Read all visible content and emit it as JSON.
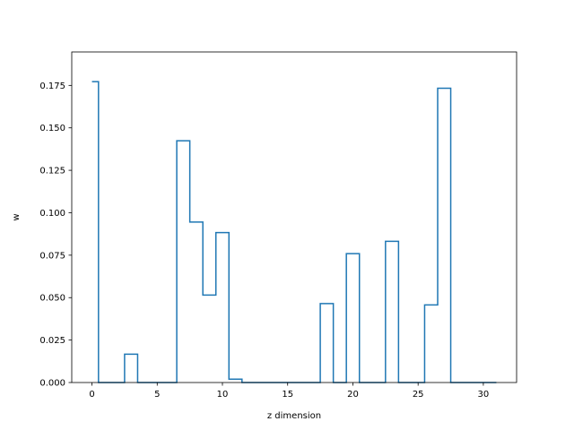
{
  "chart_data": {
    "type": "line",
    "drawstyle": "steps-mid",
    "title": "",
    "xlabel": "z dimension",
    "ylabel": "w",
    "xlim": [
      -1.55,
      32.55
    ],
    "ylim": [
      0,
      0.1947
    ],
    "xticks": [
      0,
      5,
      10,
      15,
      20,
      25,
      30
    ],
    "xtick_labels": [
      "0",
      "5",
      "10",
      "15",
      "20",
      "25",
      "30"
    ],
    "yticks": [
      0.0,
      0.025,
      0.05,
      0.075,
      0.1,
      0.125,
      0.15,
      0.175
    ],
    "ytick_labels": [
      "0.000",
      "0.025",
      "0.050",
      "0.075",
      "0.100",
      "0.125",
      "0.150",
      "0.175"
    ],
    "grid": false,
    "color": "#1f77b4",
    "x": [
      0,
      1,
      2,
      3,
      4,
      5,
      6,
      7,
      8,
      9,
      10,
      11,
      12,
      13,
      14,
      15,
      16,
      17,
      18,
      19,
      20,
      21,
      22,
      23,
      24,
      25,
      26,
      27,
      28,
      29,
      30,
      31
    ],
    "y": [
      0.1772,
      0,
      0,
      0.0167,
      0,
      0,
      0,
      0.1424,
      0.0945,
      0.0515,
      0.0883,
      0.002,
      0,
      0,
      0,
      0,
      0,
      0,
      0.0465,
      0,
      0.0759,
      0,
      0,
      0.0832,
      0,
      0,
      0.0457,
      0.1733,
      0,
      0,
      0,
      0
    ]
  }
}
